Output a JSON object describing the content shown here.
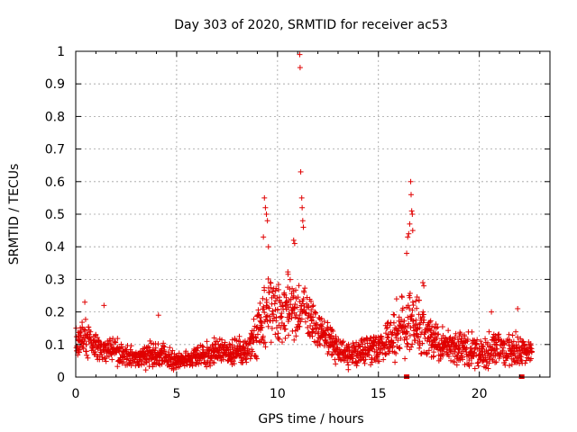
{
  "chart_data": {
    "type": "scatter",
    "title": "Day 303 of 2020, SRMTID for receiver ac53",
    "xlabel": "GPS time / hours",
    "ylabel": "SRMTID / TECUs",
    "xlim": [
      0,
      23.5
    ],
    "ylim": [
      0,
      1
    ],
    "grid": true,
    "marker": "+",
    "color": "#e00000",
    "x_ticks": [
      0,
      5,
      10,
      15,
      20
    ],
    "x_tick_labels": [
      "0",
      "5",
      "10",
      "15",
      "20"
    ],
    "y_ticks": [
      0,
      0.1,
      0.2,
      0.3,
      0.4,
      0.5,
      0.6,
      0.7,
      0.8,
      0.9,
      1
    ],
    "y_tick_labels": [
      "0",
      "0.1",
      "0.2",
      "0.3",
      "0.4",
      "0.5",
      "0.6",
      "0.7",
      "0.8",
      "0.9",
      "1"
    ],
    "profile": {
      "description_hours": [
        0,
        0.5,
        1,
        2,
        3,
        4,
        5,
        6,
        7,
        8,
        8.5,
        9,
        9.5,
        10,
        10.5,
        11,
        11.5,
        12,
        13,
        13.5,
        14,
        15,
        15.5,
        16,
        16.5,
        17,
        18,
        19,
        20,
        21,
        22,
        22.6
      ],
      "median_values": [
        0.11,
        0.12,
        0.09,
        0.08,
        0.06,
        0.07,
        0.05,
        0.06,
        0.08,
        0.08,
        0.07,
        0.14,
        0.22,
        0.19,
        0.23,
        0.2,
        0.19,
        0.15,
        0.08,
        0.06,
        0.08,
        0.09,
        0.11,
        0.14,
        0.18,
        0.15,
        0.1,
        0.09,
        0.08,
        0.09,
        0.08,
        0.07
      ],
      "spread": [
        0.05,
        0.07,
        0.05,
        0.05,
        0.04,
        0.05,
        0.03,
        0.04,
        0.05,
        0.05,
        0.04,
        0.1,
        0.14,
        0.1,
        0.12,
        0.1,
        0.09,
        0.07,
        0.05,
        0.04,
        0.05,
        0.06,
        0.07,
        0.1,
        0.12,
        0.1,
        0.06,
        0.06,
        0.06,
        0.06,
        0.06,
        0.05
      ]
    },
    "outliers": [
      {
        "x": 11.1,
        "y": 0.99
      },
      {
        "x": 11.12,
        "y": 0.95
      },
      {
        "x": 11.15,
        "y": 0.63
      },
      {
        "x": 11.2,
        "y": 0.55
      },
      {
        "x": 11.22,
        "y": 0.52
      },
      {
        "x": 11.25,
        "y": 0.48
      },
      {
        "x": 11.28,
        "y": 0.46
      },
      {
        "x": 9.35,
        "y": 0.55
      },
      {
        "x": 9.4,
        "y": 0.52
      },
      {
        "x": 9.45,
        "y": 0.5
      },
      {
        "x": 9.5,
        "y": 0.48
      },
      {
        "x": 9.3,
        "y": 0.43
      },
      {
        "x": 9.55,
        "y": 0.4
      },
      {
        "x": 10.8,
        "y": 0.42
      },
      {
        "x": 10.85,
        "y": 0.41
      },
      {
        "x": 16.6,
        "y": 0.6
      },
      {
        "x": 16.62,
        "y": 0.56
      },
      {
        "x": 16.65,
        "y": 0.51
      },
      {
        "x": 16.68,
        "y": 0.5
      },
      {
        "x": 16.55,
        "y": 0.47
      },
      {
        "x": 16.5,
        "y": 0.44
      },
      {
        "x": 16.45,
        "y": 0.43
      },
      {
        "x": 16.4,
        "y": 0.38
      },
      {
        "x": 16.7,
        "y": 0.45
      },
      {
        "x": 17.2,
        "y": 0.29
      },
      {
        "x": 17.25,
        "y": 0.28
      },
      {
        "x": 15.9,
        "y": 0.24
      },
      {
        "x": 1.4,
        "y": 0.22
      },
      {
        "x": 4.1,
        "y": 0.19
      },
      {
        "x": 20.6,
        "y": 0.2
      },
      {
        "x": 21.9,
        "y": 0.21
      },
      {
        "x": 0.45,
        "y": 0.23
      }
    ],
    "flag_markers": [
      {
        "x": 16.4,
        "y": 0
      },
      {
        "x": 22.1,
        "y": 0
      }
    ]
  }
}
